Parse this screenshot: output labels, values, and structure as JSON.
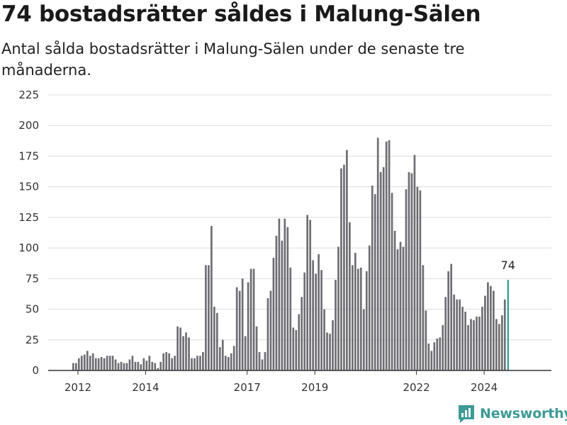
{
  "header": {
    "title": "74 bostadsrätter såldes i Malung-Sälen",
    "subtitle": "Antal sålda bostadsrätter i Malung-Sälen under de senaste tre månaderna."
  },
  "logo": {
    "text": "Newsworthy",
    "icon": "chart-logo-icon",
    "color": "#3d9a94"
  },
  "colors": {
    "bar": "#6f6e74",
    "highlight": "#2a9d8f",
    "grid": "#dddddd"
  },
  "chart_data": {
    "type": "bar",
    "title": "74 bostadsrätter såldes i Malung-Sälen",
    "subtitle": "Antal sålda bostadsrätter i Malung-Sälen under de senaste tre månaderna.",
    "xlabel": "",
    "ylabel": "",
    "ylim": [
      0,
      225
    ],
    "yticks": [
      0,
      25,
      50,
      75,
      100,
      125,
      150,
      175,
      200,
      225
    ],
    "xticks": [
      {
        "label": "2012",
        "year": 2012
      },
      {
        "label": "2014",
        "year": 2014
      },
      {
        "label": "2017",
        "year": 2017
      },
      {
        "label": "2019",
        "year": 2019
      },
      {
        "label": "2022",
        "year": 2022
      },
      {
        "label": "2024",
        "year": 2024
      }
    ],
    "grid": true,
    "legend": "none",
    "last_value_label": "74",
    "series": [
      {
        "values": [
          6,
          6,
          10,
          12,
          13,
          16,
          12,
          14,
          10,
          10,
          11,
          10,
          12,
          12,
          12,
          9,
          6,
          7,
          6,
          6,
          9,
          12,
          7,
          7,
          5,
          10,
          8,
          12,
          7,
          6,
          2,
          7,
          14,
          15,
          14,
          10,
          12,
          36,
          35,
          28,
          31,
          27,
          10,
          10,
          12,
          12,
          15,
          86,
          86,
          118,
          52,
          47,
          19,
          25,
          12,
          11,
          14,
          20,
          68,
          65,
          75,
          28,
          72,
          83,
          83,
          36,
          15,
          9,
          15,
          59,
          65,
          92,
          110,
          124,
          106,
          124,
          117,
          84,
          35,
          33,
          46,
          60,
          80,
          127,
          123,
          90,
          79,
          95,
          82,
          50,
          31,
          30,
          41,
          74,
          101,
          165,
          168,
          180,
          121,
          86,
          96,
          83,
          84,
          50,
          81,
          102,
          151,
          144,
          190,
          162,
          166,
          187,
          188,
          145,
          114,
          99,
          105,
          101,
          148,
          162,
          161,
          176,
          150,
          147,
          86,
          49,
          22,
          16,
          23,
          26,
          27,
          37,
          60,
          81,
          87,
          62,
          58,
          58,
          52,
          48,
          37,
          42,
          41,
          44,
          44,
          52,
          61,
          72,
          69,
          65,
          42,
          38,
          45,
          58,
          74
        ]
      }
    ]
  }
}
